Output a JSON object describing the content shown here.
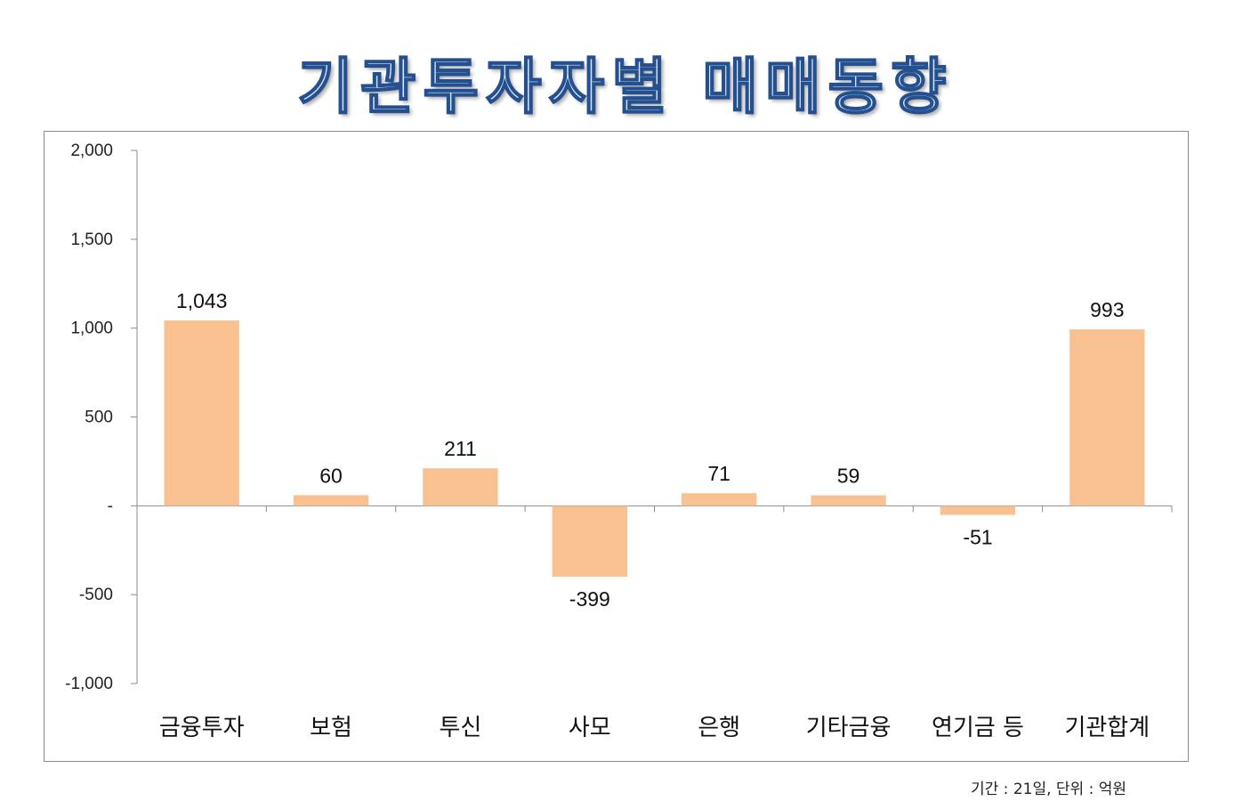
{
  "chart_data": {
    "type": "bar",
    "title": "기관투자자별 매매동향",
    "categories": [
      "금융투자",
      "보험",
      "투신",
      "사모",
      "은행",
      "기타금융",
      "연기금 등",
      "기관합계"
    ],
    "values": [
      1043,
      60,
      211,
      -399,
      71,
      59,
      -51,
      993
    ],
    "value_labels": [
      "1,043",
      "60",
      "211",
      "-399",
      "71",
      "59",
      "-51",
      "993"
    ],
    "ylim": [
      -1000,
      2000
    ],
    "yticks": [
      2000,
      1500,
      1000,
      500,
      0,
      -500,
      -1000
    ],
    "ytick_labels": [
      "2,000",
      "1,500",
      "1,000",
      "500",
      "-",
      "-500",
      "-1,000"
    ],
    "bar_color": "#f9c191",
    "grid": false,
    "note": "기간 : 21일, 단위 : 억원"
  }
}
